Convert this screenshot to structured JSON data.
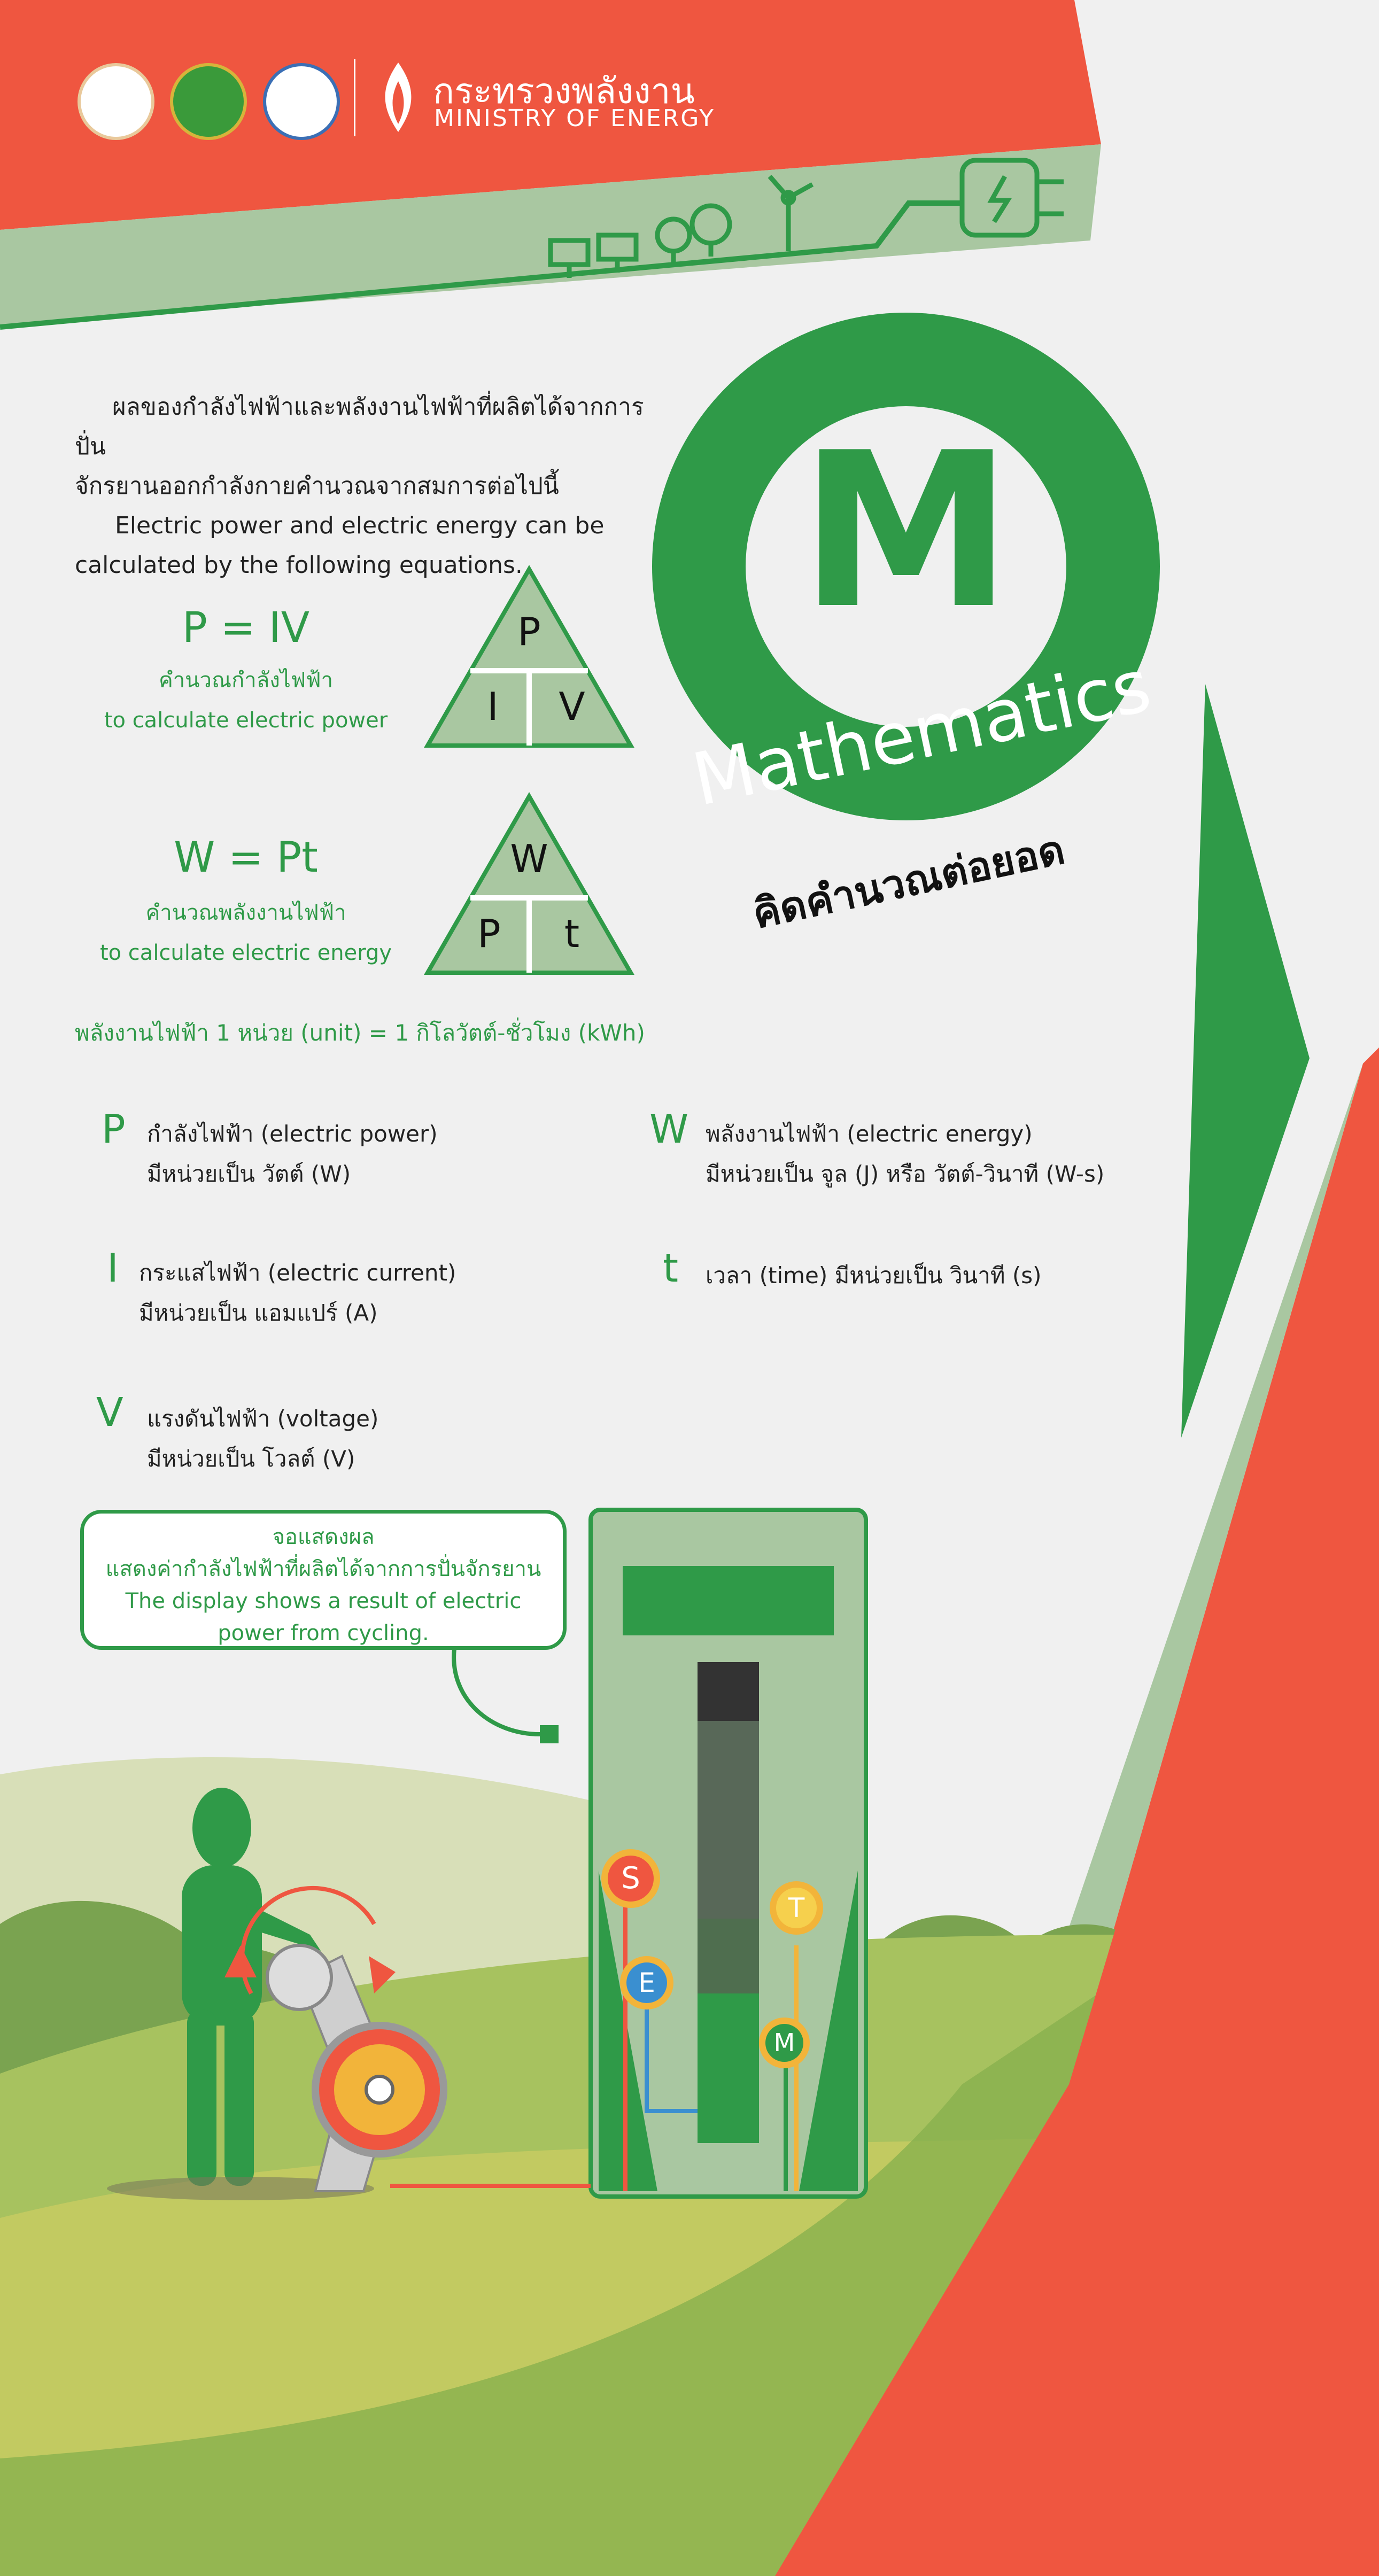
{
  "header": {
    "ministry_thai": "กระทรวงพลังงาน",
    "ministry_en": "MINISTRY OF ENERGY",
    "logos": [
      "royal-emblem-logo",
      "golden-emblem-logo",
      "water-drop-logo",
      "flame-logo"
    ]
  },
  "intro": {
    "thai_line1": "ผลของกำลังไฟฟ้าและพลังงานไฟฟ้าที่ผลิตได้จากการปั่น",
    "thai_line2": "จักรยานออกกำลังกายคำนวณจากสมการต่อไปนี้",
    "en_line1": "Electric power and electric energy can be",
    "en_line2": "calculated by the following equations."
  },
  "equation_power": {
    "formula": "P = IV",
    "thai": "คำนวณกำลังไฟฟ้า",
    "en": "to calculate electric power",
    "triangle": {
      "top": "P",
      "left": "I",
      "right": "V"
    }
  },
  "equation_energy": {
    "formula": "W = Pt",
    "thai": "คำนวณพลังงานไฟฟ้า",
    "en": "to calculate electric energy",
    "triangle": {
      "top": "W",
      "left": "P",
      "right": "t"
    }
  },
  "unit_note": "พลังงานไฟฟ้า 1 หน่วย (unit) = 1 กิโลวัตต์-ชั่วโมง (kWh)",
  "badge": {
    "letter": "M",
    "word": "Mathematics",
    "tagline": "คิดคำนวณต่อยอด"
  },
  "definitions": {
    "P": {
      "symbol": "P",
      "line1": "กำลังไฟฟ้า (electric power)",
      "line2": "มีหน่วยเป็น วัตต์ (W)"
    },
    "W": {
      "symbol": "W",
      "line1": "พลังงานไฟฟ้า  (electric energy)",
      "line2": "มีหน่วยเป็น จูล (J) หรือ วัตต์-วินาที (W-s)"
    },
    "I": {
      "symbol": "I",
      "line1": "กระแสไฟฟ้า (electric current)",
      "line2": "มีหน่วยเป็น แอมแปร์ (A)"
    },
    "t": {
      "symbol": "t",
      "line1": "เวลา (time)  มีหน่วยเป็น วินาที (s)"
    },
    "V": {
      "symbol": "V",
      "line1": "แรงดันไฟฟ้า (voltage)",
      "line2": "มีหน่วยเป็น โวลต์ (V)"
    }
  },
  "callout": {
    "title": "จอแสดงผล",
    "thai": "แสดงค่ากำลังไฟฟ้าที่ผลิตได้จากการปั่นจักรยาน",
    "en_line1": "The display shows a result of electric",
    "en_line2": "power from cycling."
  },
  "bulbs": [
    "S",
    "T",
    "E",
    "M"
  ],
  "colors": {
    "brand_green": "#2f9a48",
    "accent_red": "#ef5640",
    "light_green": "#a9c7a1",
    "background": "#f0f0f0"
  }
}
